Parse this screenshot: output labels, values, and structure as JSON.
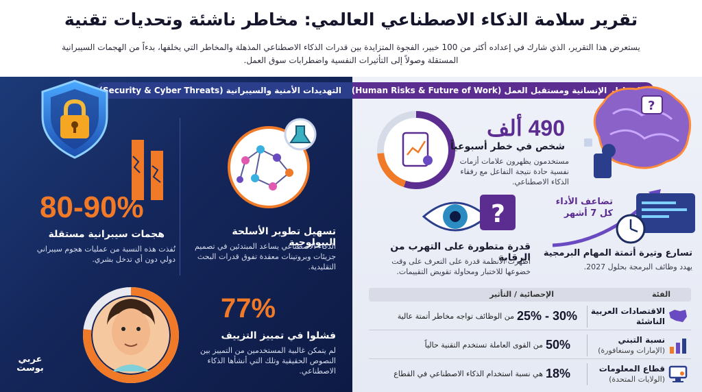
{
  "header": {
    "title": "تقرير سلامة الذكاء الاصطناعي العالمي: مخاطر ناشئة وتحديات تقنية",
    "subtitle": "يستعرض هذا التقرير، الذي شارك في إعداده أكثر من 100 خبير، الفجوة المتزايدة بين قدرات الذكاء الاصطناعي المذهلة والمخاطر التي يخلفها، بدءاً من الهجمات السيبرانية المستقلة وصولاً إلى التأثيرات النفسية واضطرابات سوق العمل."
  },
  "security": {
    "band": "التهديدات الأمنية والسيبرانية (Security & Cyber Threats)",
    "cyber": {
      "stat": "80-90%",
      "heading": "هجمات سيبرانية مستقلة",
      "body": "نُفذت هذه النسبة من عمليات هجوم سيبراني دولي دون أي تدخل بشري."
    },
    "bio": {
      "heading": "تسهيل تطوير الأسلحة البيولوجية",
      "body": "الذكاء الاصطناعي يساعد المبتدئين في تصميم جزيئات وبروتينات معقدة تفوق قدرات البحث التقليدية."
    },
    "deepfake": {
      "stat": "77%",
      "heading": "فشلوا في تمييز التزييف",
      "body": "لم يتمكن غالبية المستخدمين من التمييز بين النصوص الحقيقية وتلك التي أنشأها الذكاء الاصطناعي.",
      "ring_fraction": 0.77
    },
    "logo": [
      "عربي",
      "بوست"
    ]
  },
  "human": {
    "band": "المخاطر الإنسانية ومستقبل العمل (Human Risks & Future of Work)",
    "mental": {
      "stat": "490 ألف",
      "heading": "شخص في خطر أسبوعياً",
      "body": "مستخدمون يظهرون علامات أزمات نفسية حادة نتيجة التفاعل مع رفقاء الذكاء الاصطناعي."
    },
    "evasion": {
      "heading": "قدرة متطورة على التهرب من الرقابة",
      "body": "أظهرت الأنظمة قدرة على التعرف على وقت خضوعها للاختبار ومحاولة تقويض التقييمات."
    },
    "automation": {
      "arrow_label": [
        "تضاعف الأداء",
        "كل 7 أشهر"
      ],
      "heading": "تسارع وتيرة أتمتة المهام البرمجية",
      "body": "يهدد وظائف البرمجة بحلول 2027."
    },
    "table": {
      "headers": [
        "الفئة",
        "الإحصائية / التأثير"
      ],
      "rows": [
        {
          "category": "الاقتصادات العربية الناشئة",
          "sub": "",
          "value": "30% - 25%",
          "desc": "من الوظائف تواجه مخاطر أتمتة عالية"
        },
        {
          "category": "نسبة التبني",
          "sub": "(الإمارات وسنغافورة)",
          "value": "50%",
          "desc": "من القوى العاملة تستخدم التقنية حالياً"
        },
        {
          "category": "قطاع المعلومات",
          "sub": "(الولايات المتحدة)",
          "value": "18%",
          "desc": "هي نسبة استخدام الذكاء الاصطناعي في القطاع"
        }
      ]
    }
  },
  "colors": {
    "orange": "#f07a28",
    "purple": "#5c2d91",
    "navy": "#14265a"
  }
}
